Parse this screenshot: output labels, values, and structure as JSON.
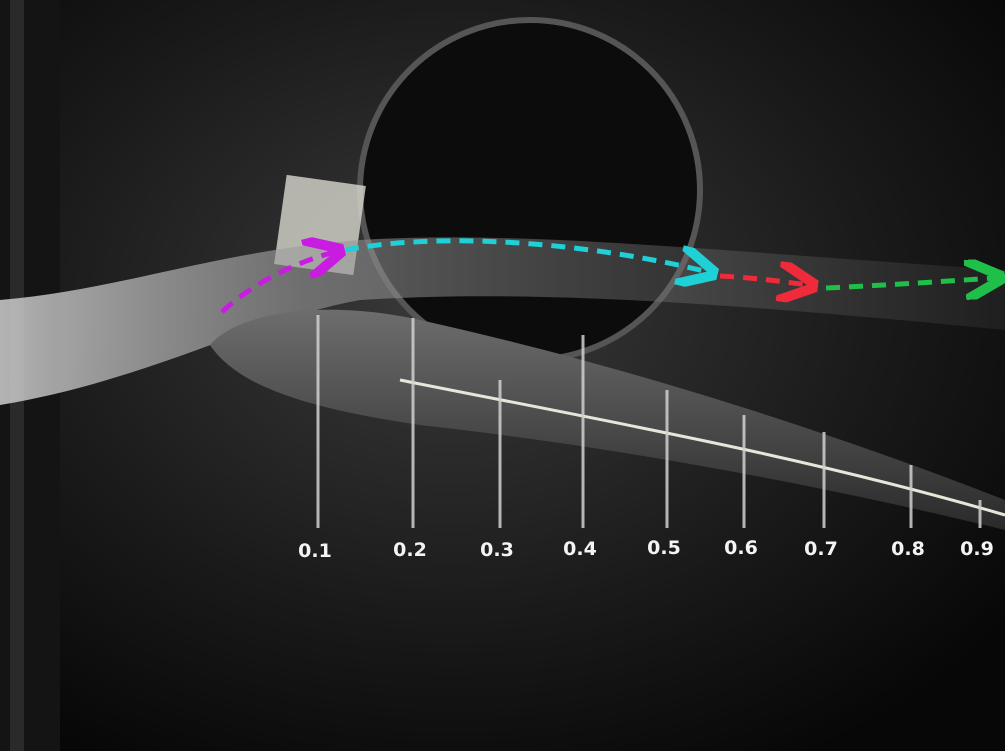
{
  "stations": {
    "labels": [
      "0.1",
      "0.2",
      "0.3",
      "0.4",
      "0.5",
      "0.6",
      "0.7",
      "0.8",
      "0.9"
    ]
  }
}
